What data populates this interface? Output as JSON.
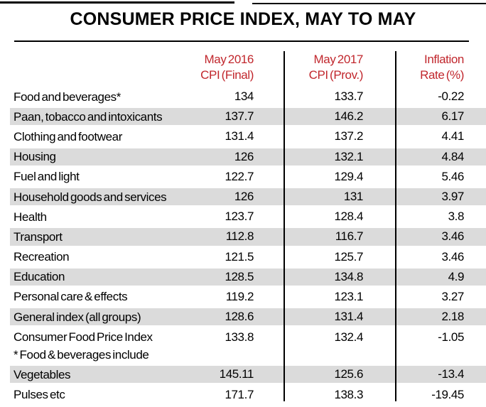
{
  "title": "CONSUMER PRICE INDEX, MAY TO MAY",
  "colors": {
    "header_text": "#C1272D",
    "shaded_row": "#DBDBDB",
    "body_text": "#000000",
    "rule_line": "#000000"
  },
  "columns": [
    {
      "line1": "May 2016",
      "line2": "CPI (Final)"
    },
    {
      "line1": "May 2017",
      "line2": "CPI (Prov.)"
    },
    {
      "line1": "Inflation",
      "line2": "Rate (%)"
    }
  ],
  "rows": [
    {
      "label": "Food and beverages*",
      "cpi_2016": "134",
      "cpi_2017": "133.7",
      "inflation": "-0.22",
      "shaded": false
    },
    {
      "label": "Paan, tobacco and intoxicants",
      "cpi_2016": "137.7",
      "cpi_2017": "146.2",
      "inflation": "6.17",
      "shaded": true
    },
    {
      "label": "Clothing and footwear",
      "cpi_2016": "131.4",
      "cpi_2017": "137.2",
      "inflation": "4.41",
      "shaded": false
    },
    {
      "label": "Housing",
      "cpi_2016": "126",
      "cpi_2017": "132.1",
      "inflation": "4.84",
      "shaded": true
    },
    {
      "label": "Fuel and light",
      "cpi_2016": "122.7",
      "cpi_2017": "129.4",
      "inflation": "5.46",
      "shaded": false
    },
    {
      "label": "Household goods and services",
      "cpi_2016": "126",
      "cpi_2017": "131",
      "inflation": "3.97",
      "shaded": true
    },
    {
      "label": "Health",
      "cpi_2016": "123.7",
      "cpi_2017": "128.4",
      "inflation": "3.8",
      "shaded": false
    },
    {
      "label": "Transport",
      "cpi_2016": "112.8",
      "cpi_2017": "116.7",
      "inflation": "3.46",
      "shaded": true
    },
    {
      "label": "Recreation",
      "cpi_2016": "121.5",
      "cpi_2017": "125.7",
      "inflation": "3.46",
      "shaded": false
    },
    {
      "label": "Education",
      "cpi_2016": "128.5",
      "cpi_2017": "134.8",
      "inflation": "4.9",
      "shaded": true
    },
    {
      "label": "Personal care & effects",
      "cpi_2016": "119.2",
      "cpi_2017": "123.1",
      "inflation": "3.27",
      "shaded": false
    },
    {
      "label": "General index (all groups)",
      "cpi_2016": "128.6",
      "cpi_2017": "131.4",
      "inflation": "2.18",
      "shaded": true
    },
    {
      "label": "Consumer Food Price Index",
      "note": "* Food & beverages include",
      "cpi_2016": "133.8",
      "cpi_2017": "132.4",
      "inflation": "-1.05",
      "shaded": false
    },
    {
      "label": "Vegetables",
      "cpi_2016": "145.11",
      "cpi_2017": "125.6",
      "inflation": "-13.4",
      "shaded": true
    },
    {
      "label": "Pulses etc",
      "cpi_2016": "171.7",
      "cpi_2017": "138.3",
      "inflation": "-19.45",
      "shaded": false
    }
  ],
  "chart_data": {
    "type": "table",
    "title": "CONSUMER PRICE INDEX, MAY TO MAY",
    "columns": [
      "",
      "May 2016 CPI (Final)",
      "May 2017 CPI (Prov.)",
      "Inflation Rate (%)"
    ],
    "rows": [
      [
        "Food and beverages*",
        134,
        133.7,
        -0.22
      ],
      [
        "Paan, tobacco and intoxicants",
        137.7,
        146.2,
        6.17
      ],
      [
        "Clothing and footwear",
        131.4,
        137.2,
        4.41
      ],
      [
        "Housing",
        126,
        132.1,
        4.84
      ],
      [
        "Fuel and light",
        122.7,
        129.4,
        5.46
      ],
      [
        "Household goods and services",
        126,
        131,
        3.97
      ],
      [
        "Health",
        123.7,
        128.4,
        3.8
      ],
      [
        "Transport",
        112.8,
        116.7,
        3.46
      ],
      [
        "Recreation",
        121.5,
        125.7,
        3.46
      ],
      [
        "Education",
        128.5,
        134.8,
        4.9
      ],
      [
        "Personal care & effects",
        119.2,
        123.1,
        3.27
      ],
      [
        "General index (all groups)",
        128.6,
        131.4,
        2.18
      ],
      [
        "Consumer Food Price Index * Food & beverages include",
        133.8,
        132.4,
        -1.05
      ],
      [
        "Vegetables",
        145.11,
        125.6,
        -13.4
      ],
      [
        "Pulses etc",
        171.7,
        138.3,
        -19.45
      ]
    ]
  }
}
